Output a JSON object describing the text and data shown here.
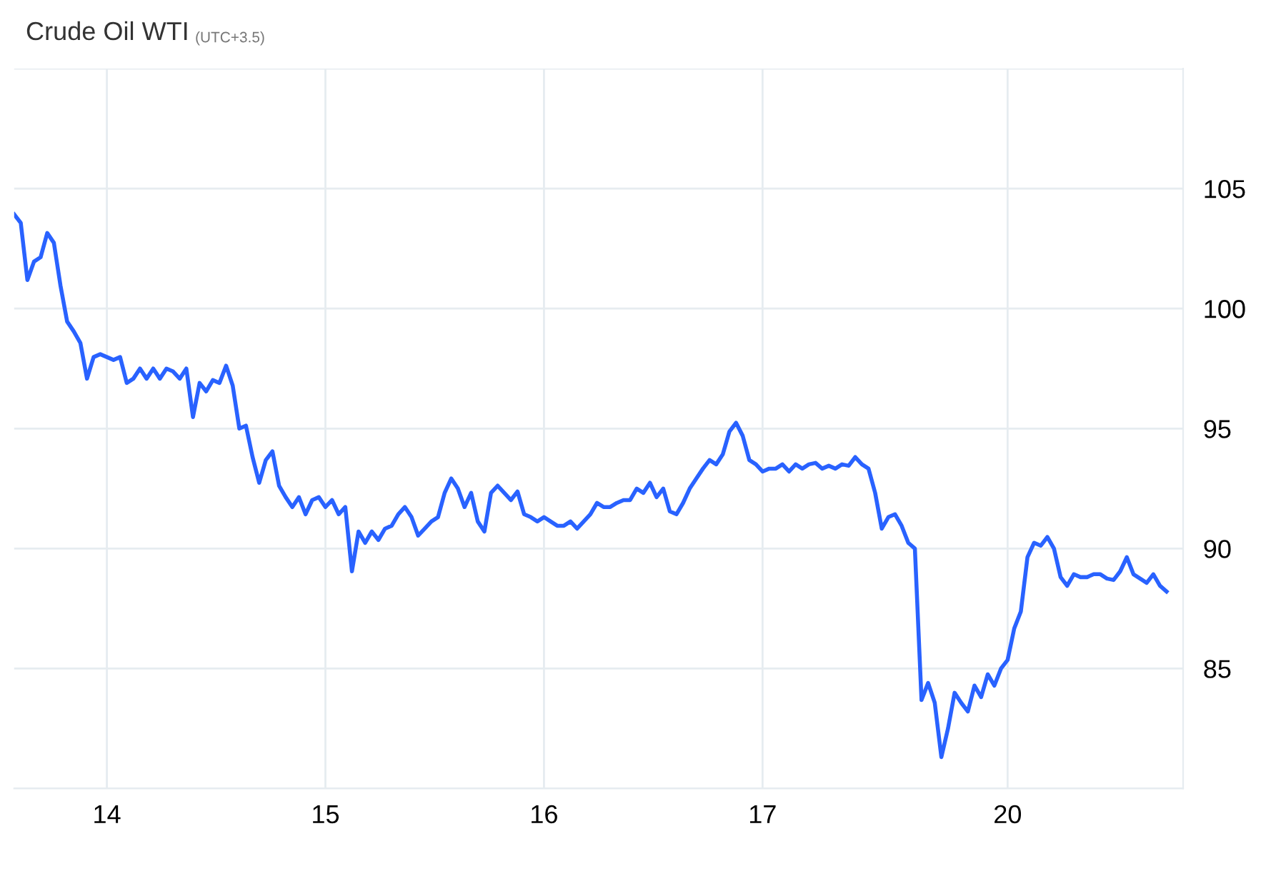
{
  "chart_data": {
    "type": "line",
    "title": "Crude Oil WTI",
    "subtitle": "(UTC+3.5)",
    "categories": [
      null,
      null,
      null,
      null,
      null,
      null,
      null,
      null,
      null,
      null,
      null,
      null,
      null,
      null,
      "14",
      null,
      null,
      null,
      null,
      null,
      null,
      null,
      null,
      null,
      null,
      null,
      null,
      null,
      null,
      null,
      null,
      null,
      null,
      null,
      null,
      null,
      null,
      null,
      null,
      null,
      null,
      null,
      null,
      null,
      null,
      null,
      null,
      "15",
      null,
      null,
      null,
      null,
      null,
      null,
      null,
      null,
      null,
      null,
      null,
      null,
      null,
      null,
      null,
      null,
      null,
      null,
      null,
      null,
      null,
      null,
      null,
      null,
      null,
      null,
      null,
      null,
      null,
      null,
      null,
      null,
      "16",
      null,
      null,
      null,
      null,
      null,
      null,
      null,
      null,
      null,
      null,
      null,
      null,
      null,
      null,
      null,
      null,
      null,
      null,
      null,
      null,
      null,
      null,
      null,
      null,
      null,
      null,
      null,
      null,
      null,
      null,
      null,
      null,
      "17",
      null,
      null,
      null,
      null,
      null,
      null,
      null,
      null,
      null,
      null,
      null,
      null,
      null,
      null,
      null,
      null,
      null,
      null,
      null,
      null,
      null,
      null,
      null,
      null,
      null,
      null,
      null,
      null,
      null,
      null,
      null,
      null,
      null,
      null,
      null,
      null,
      "20",
      null,
      null,
      null,
      null,
      null,
      null,
      null,
      null,
      null,
      null,
      null,
      null,
      null,
      null,
      null,
      null,
      null,
      null,
      null,
      null,
      null,
      null,
      null,
      null
    ],
    "ylim": [
      80,
      110
    ],
    "yticks": [
      {
        "value": 80,
        "label": null
      },
      85,
      90,
      95,
      100,
      105,
      {
        "value": 110,
        "label": null
      }
    ],
    "grid": true,
    "marker": "none",
    "line_style": "solid",
    "series": [
      {
        "color": "#2962ff",
        "values": [
          103.93,
          103.57,
          101.19,
          101.96,
          102.14,
          103.15,
          102.74,
          100.95,
          99.46,
          99.05,
          98.57,
          97.08,
          97.98,
          98.1,
          97.98,
          97.86,
          97.98,
          96.9,
          97.08,
          97.5,
          97.08,
          97.5,
          97.08,
          97.5,
          97.38,
          97.08,
          97.5,
          95.48,
          96.9,
          96.55,
          97.02,
          96.9,
          97.62,
          96.79,
          95.0,
          95.12,
          93.81,
          92.74,
          93.69,
          94.05,
          92.62,
          92.14,
          91.73,
          92.14,
          91.43,
          92.02,
          92.14,
          91.73,
          92.02,
          91.43,
          91.73,
          89.05,
          90.71,
          90.24,
          90.71,
          90.36,
          90.83,
          90.95,
          91.43,
          91.73,
          91.31,
          90.54,
          90.83,
          91.13,
          91.31,
          92.32,
          92.92,
          92.5,
          91.73,
          92.32,
          91.13,
          90.71,
          92.32,
          92.62,
          92.32,
          92.02,
          92.38,
          91.43,
          91.31,
          91.13,
          91.31,
          91.13,
          90.95,
          90.95,
          91.13,
          90.83,
          91.13,
          91.43,
          91.9,
          91.73,
          91.73,
          91.9,
          92.02,
          92.02,
          92.5,
          92.32,
          92.74,
          92.14,
          92.5,
          91.55,
          91.43,
          91.9,
          92.5,
          92.92,
          93.33,
          93.69,
          93.51,
          93.93,
          94.88,
          95.24,
          94.7,
          93.69,
          93.51,
          93.21,
          93.33,
          93.33,
          93.51,
          93.21,
          93.51,
          93.33,
          93.51,
          93.57,
          93.33,
          93.45,
          93.33,
          93.51,
          93.45,
          93.81,
          93.51,
          93.33,
          92.32,
          90.83,
          91.31,
          91.43,
          90.95,
          90.24,
          90.0,
          83.69,
          84.4,
          83.57,
          81.31,
          82.5,
          83.99,
          83.57,
          83.21,
          84.29,
          83.81,
          84.76,
          84.29,
          85.0,
          85.36,
          86.67,
          87.38,
          89.64,
          90.24,
          90.12,
          90.48,
          90.0,
          88.81,
          88.45,
          88.93,
          88.81,
          88.81,
          88.93,
          88.93,
          88.75,
          88.69,
          89.05,
          89.64,
          88.93,
          88.75,
          88.57,
          88.93,
          88.45,
          88.21
        ]
      }
    ]
  }
}
